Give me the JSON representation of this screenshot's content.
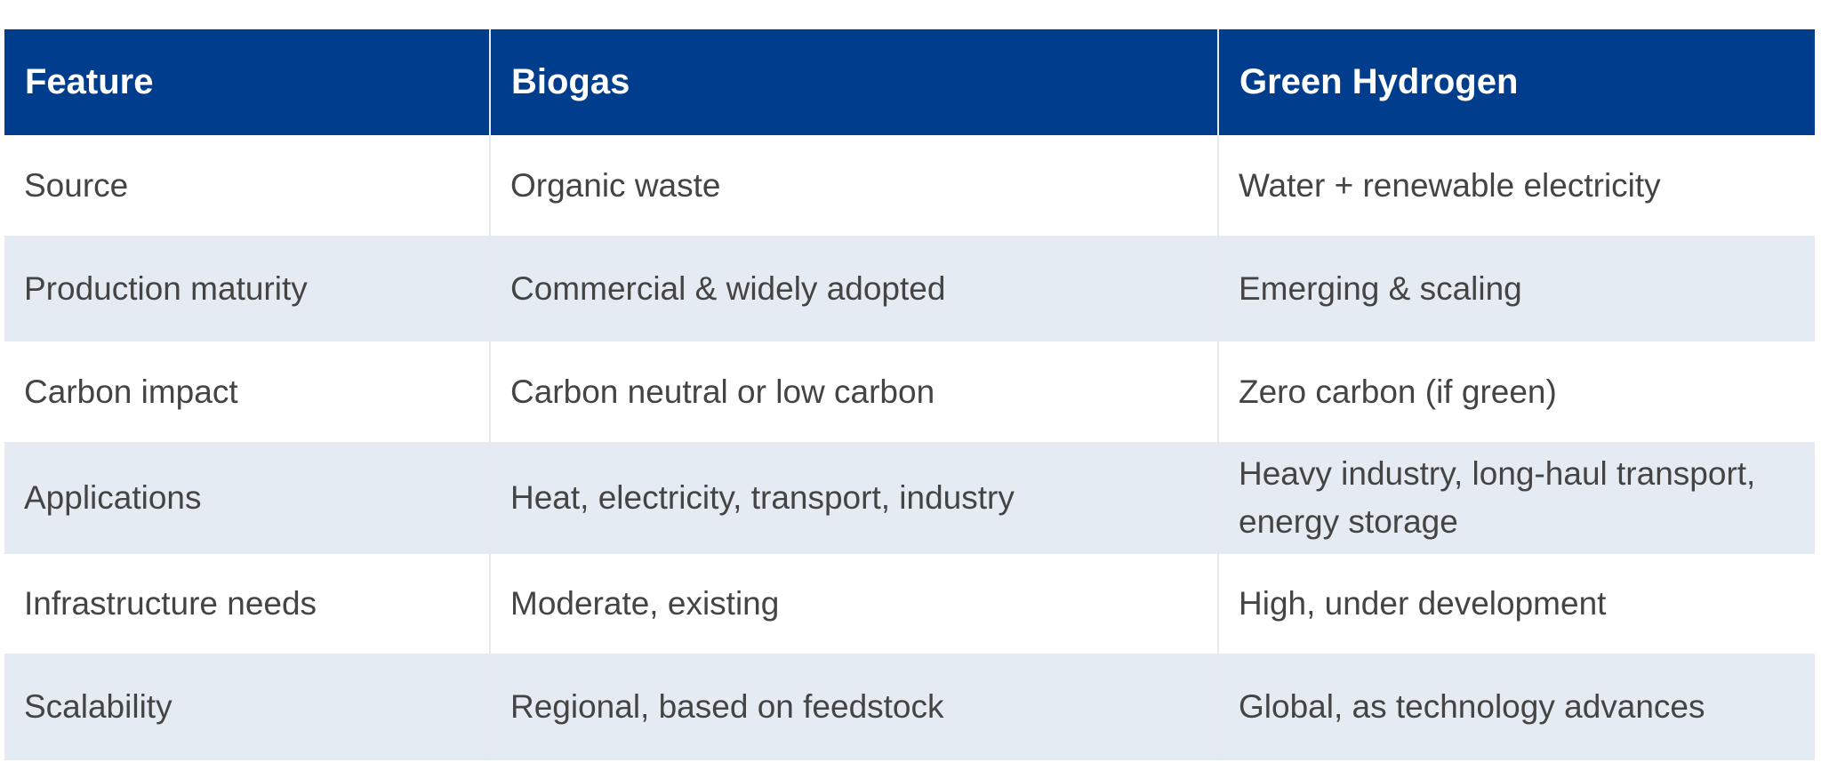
{
  "table": {
    "headers": [
      "Feature",
      "Biogas",
      "Green Hydrogen"
    ],
    "rows": [
      [
        "Source",
        "Organic waste",
        "Water + renewable electricity"
      ],
      [
        "Production maturity",
        "Commercial & widely adopted",
        "Emerging & scaling"
      ],
      [
        "Carbon impact",
        "Carbon neutral or low carbon",
        "Zero carbon (if green)"
      ],
      [
        "Applications",
        "Heat, electricity, transport, industry",
        "Heavy industry, long-haul transport, energy storage"
      ],
      [
        "Infrastructure needs",
        "Moderate, existing",
        "High, under development"
      ],
      [
        "Scalability",
        "Regional, based on feedstock",
        "Global, as technology advances"
      ]
    ]
  },
  "colors": {
    "header_bg": "#003d8c",
    "stripe_bg": "#e4ebf2",
    "text": "#444444"
  }
}
